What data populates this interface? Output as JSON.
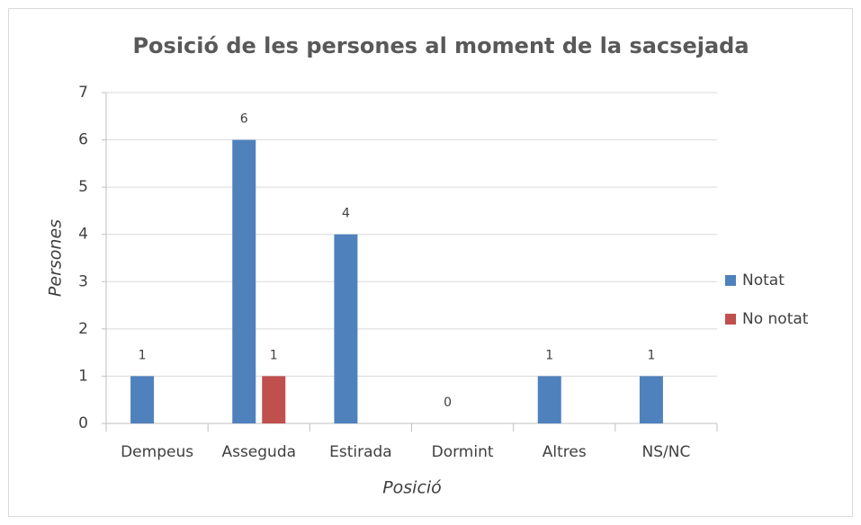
{
  "chart_data": {
    "type": "bar",
    "title": "Posició de les persones al moment de la sacsejada",
    "x_label": "Posició",
    "y_label": "Persones",
    "categories": [
      "Dempeus",
      "Asseguda",
      "Estirada",
      "Dormint",
      "Altres",
      "NS/NC"
    ],
    "series": [
      {
        "name": "Notat",
        "color": "#4f81bd",
        "values": [
          1,
          6,
          4,
          0,
          1,
          1
        ]
      },
      {
        "name": "No notat",
        "color": "#c0504d",
        "values": [
          null,
          1,
          null,
          null,
          null,
          null
        ]
      }
    ],
    "ylim": [
      0,
      7
    ],
    "yticks": [
      0,
      1,
      2,
      3,
      4,
      5,
      6,
      7
    ],
    "grid": true,
    "legend": "right"
  }
}
